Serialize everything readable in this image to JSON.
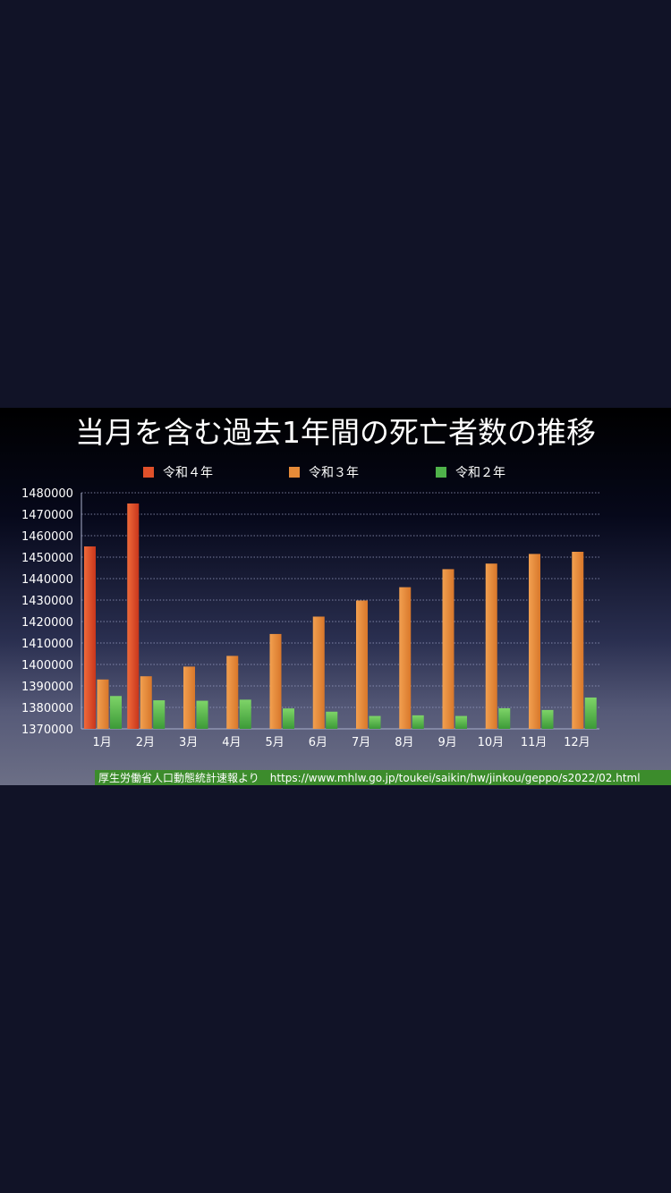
{
  "chart_data": {
    "type": "bar",
    "title": "当月を含む過去1年間の死亡者数の推移",
    "categories": [
      "1月",
      "2月",
      "3月",
      "4月",
      "5月",
      "6月",
      "7月",
      "8月",
      "9月",
      "10月",
      "11月",
      "12月"
    ],
    "series": [
      {
        "name": "令和４年",
        "color": "#e0502a",
        "values": [
          1455000,
          1475000,
          null,
          null,
          null,
          null,
          null,
          null,
          null,
          null,
          null,
          null
        ]
      },
      {
        "name": "令和３年",
        "color": "#e68a38",
        "values": [
          1393000,
          1394500,
          1399000,
          1404000,
          1414200,
          1422300,
          1429800,
          1436000,
          1444400,
          1447000,
          1451500,
          1452500
        ]
      },
      {
        "name": "令和２年",
        "color": "#4fb24a",
        "values": [
          1385300,
          1383300,
          1383100,
          1383600,
          1379500,
          1378000,
          1376000,
          1376300,
          1376000,
          1379600,
          1378800,
          1384600
        ]
      }
    ],
    "yticks": [
      1370000,
      1380000,
      1390000,
      1400000,
      1410000,
      1420000,
      1430000,
      1440000,
      1450000,
      1460000,
      1470000,
      1480000
    ],
    "ylim": [
      1370000,
      1480000
    ],
    "grid": true,
    "legend_position": "top"
  },
  "source": {
    "label": "厚生労働省人口動態統計速報より",
    "url": "https://www.mhlw.go.jp/toukei/saikin/hw/jinkou/geppo/s2022/02.html"
  }
}
